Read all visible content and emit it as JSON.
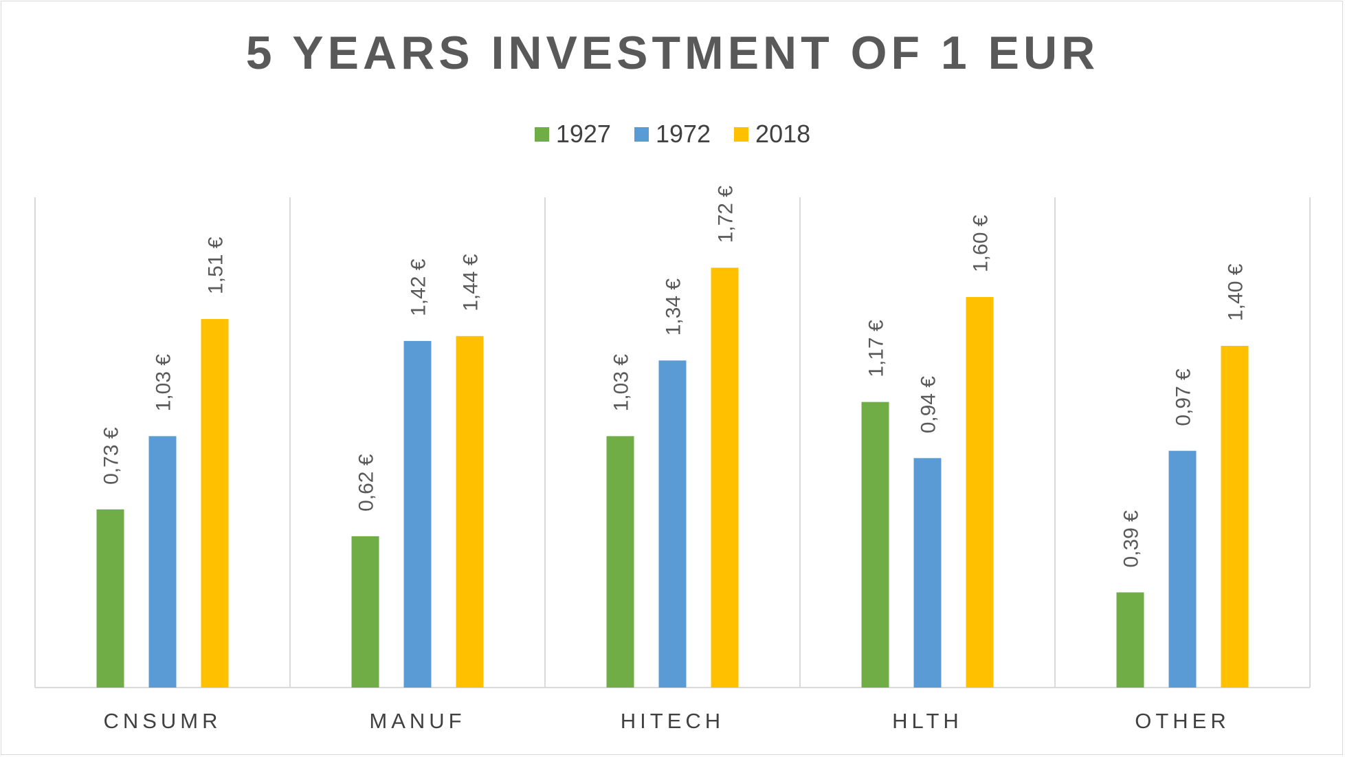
{
  "chart_data": {
    "type": "bar",
    "title": "5 YEARS INVESTMENT OF 1 EUR",
    "categories": [
      "CNSUMR",
      "MANUF",
      "HITECH",
      "HLTH",
      "OTHER"
    ],
    "series": [
      {
        "name": "1927",
        "color": "#70ad47",
        "values": [
          0.73,
          0.62,
          1.03,
          1.17,
          0.39
        ],
        "labels": [
          "0,73 €",
          "0,62 €",
          "1,03 €",
          "1,17 €",
          "0,39 €"
        ]
      },
      {
        "name": "1972",
        "color": "#5b9bd5",
        "values": [
          1.03,
          1.42,
          1.34,
          0.94,
          0.97
        ],
        "labels": [
          "1,03 €",
          "1,42 €",
          "1,34 €",
          "0,94 €",
          "0,97 €"
        ]
      },
      {
        "name": "2018",
        "color": "#ffc000",
        "values": [
          1.51,
          1.44,
          1.72,
          1.6,
          1.4
        ],
        "labels": [
          "1,51 €",
          "1,44 €",
          "1,72 €",
          "1,60 €",
          "1,40 €"
        ]
      }
    ],
    "ylim": [
      0,
      2.0
    ],
    "legend_position": "top",
    "grid": "vertical category separators"
  }
}
